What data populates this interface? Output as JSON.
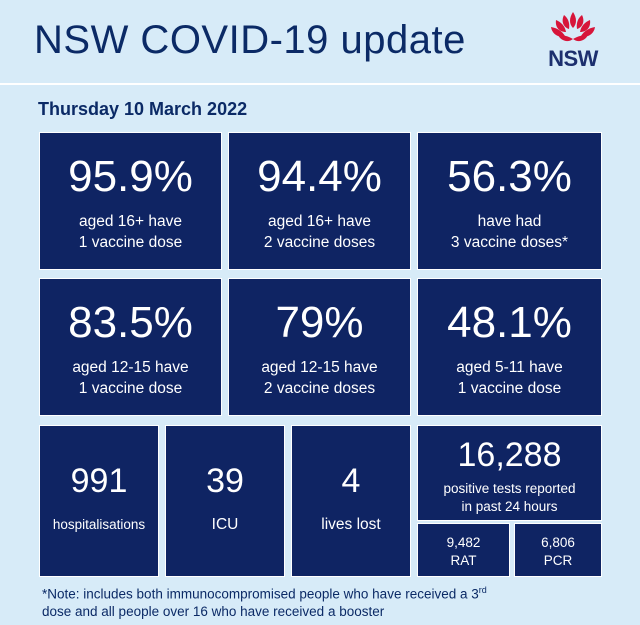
{
  "header": {
    "title": "NSW COVID-19 update",
    "logo_text": "NSW"
  },
  "date": "Thursday 10 March 2022",
  "stats": [
    {
      "value": "95.9%",
      "line1": "aged 16+ have",
      "line2": "1 vaccine dose"
    },
    {
      "value": "94.4%",
      "line1": "aged 16+ have",
      "line2": "2 vaccine doses"
    },
    {
      "value": "56.3%",
      "line1": "have had",
      "line2": "3 vaccine doses*"
    },
    {
      "value": "83.5%",
      "line1": "aged 12-15 have",
      "line2": "1 vaccine dose"
    },
    {
      "value": "79%",
      "line1": "aged 12-15 have",
      "line2": "2 vaccine doses"
    },
    {
      "value": "48.1%",
      "line1": "aged 5-11 have",
      "line2": "1 vaccine dose"
    }
  ],
  "counts": [
    {
      "value": "991",
      "label": "hospitalisations"
    },
    {
      "value": "39",
      "label": "ICU"
    },
    {
      "value": "4",
      "label": "lives lost"
    }
  ],
  "tests": {
    "value": "16,288",
    "line1": "positive tests reported",
    "line2": "in past 24 hours",
    "rat_value": "9,482",
    "rat_label": "RAT",
    "pcr_value": "6,806",
    "pcr_label": "PCR"
  },
  "footnote": {
    "part1": "*Note: includes both immunocompromised  people who have received a 3",
    "sup": "rd",
    "part2": "dose and all people over 16 who have received a booster"
  },
  "colors": {
    "background": "#d7ebf8",
    "tile": "#0f2463",
    "title": "#0b2a66",
    "waratah_red": "#d7153a"
  }
}
